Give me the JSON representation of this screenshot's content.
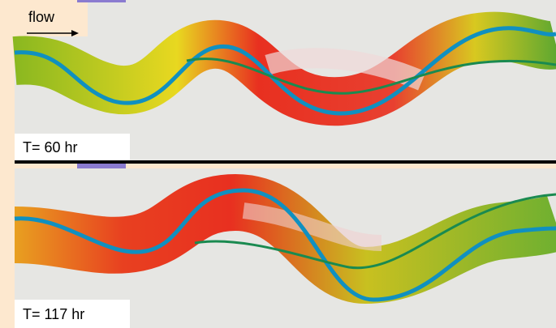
{
  "flow_label": "flow",
  "panels": [
    {
      "label": "T= 60 hr"
    },
    {
      "label": "T= 117 hr"
    }
  ]
}
